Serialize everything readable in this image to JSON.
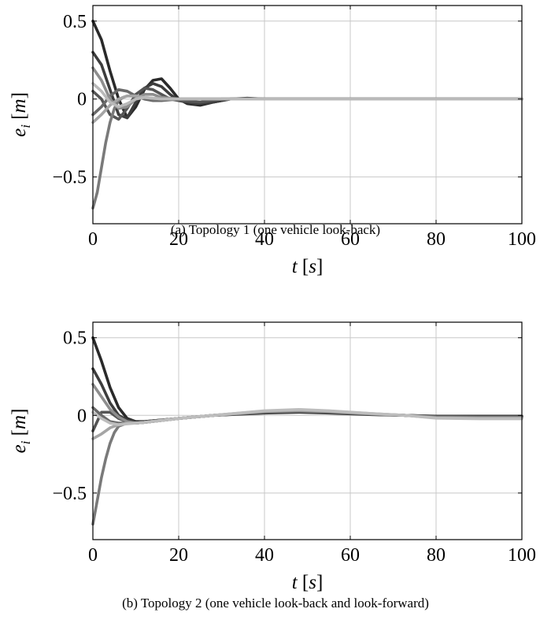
{
  "chart_data": [
    {
      "type": "line",
      "caption": "(a) Topology 1 (one vehicle look-back)",
      "xlabel_var": "t",
      "xlabel_unit": "s",
      "ylabel_var": "e",
      "ylabel_sub": "i",
      "ylabel_unit": "m",
      "xlim": [
        0,
        100
      ],
      "ylim": [
        -0.8,
        0.6
      ],
      "xticks": [
        0,
        20,
        40,
        60,
        80,
        100
      ],
      "xtick_labels": [
        "0",
        "20",
        "40",
        "60",
        "80",
        "100"
      ],
      "yticks": [
        0.5,
        0,
        -0.5
      ],
      "ytick_labels": [
        "0.5",
        "0",
        "−0.5"
      ],
      "grid": true,
      "series": [
        {
          "color": "#2a2a2a",
          "x": [
            0,
            2,
            4,
            6,
            8,
            10,
            12,
            14,
            16,
            18,
            20,
            22,
            25,
            28,
            32,
            36,
            40,
            100
          ],
          "y": [
            0.5,
            0.38,
            0.18,
            0.0,
            -0.12,
            -0.05,
            0.06,
            0.12,
            0.13,
            0.07,
            0.0,
            -0.03,
            -0.04,
            -0.02,
            0.0,
            0.005,
            0.0,
            0.0
          ]
        },
        {
          "color": "#3d3d3d",
          "x": [
            0,
            2,
            4,
            6,
            8,
            10,
            12,
            14,
            16,
            18,
            20,
            24,
            28,
            32,
            40,
            100
          ],
          "y": [
            0.3,
            0.22,
            0.06,
            -0.1,
            -0.12,
            -0.02,
            0.07,
            0.1,
            0.08,
            0.03,
            -0.01,
            -0.03,
            -0.02,
            0.0,
            0.0,
            0.0
          ]
        },
        {
          "color": "#555555",
          "x": [
            0,
            2,
            4,
            6,
            8,
            10,
            12,
            14,
            16,
            18,
            20,
            25,
            30,
            40,
            100
          ],
          "y": [
            0.05,
            0.0,
            -0.1,
            -0.13,
            -0.06,
            0.03,
            0.07,
            0.06,
            0.03,
            0.0,
            -0.01,
            -0.02,
            0.0,
            0.0,
            0.0
          ]
        },
        {
          "color": "#6a6a6a",
          "x": [
            0,
            2,
            4,
            6,
            8,
            10,
            12,
            14,
            16,
            20,
            25,
            30,
            40,
            100
          ],
          "y": [
            -0.1,
            -0.05,
            0.02,
            0.06,
            0.05,
            0.02,
            0.0,
            -0.01,
            -0.01,
            0.0,
            0.0,
            0.0,
            0.0,
            0.0
          ]
        },
        {
          "color": "#7a7a7a",
          "x": [
            0,
            1,
            2,
            3,
            4,
            5,
            6,
            7,
            8,
            10,
            12,
            14,
            16,
            20,
            30,
            40,
            100
          ],
          "y": [
            -0.7,
            -0.6,
            -0.44,
            -0.28,
            -0.15,
            -0.06,
            -0.01,
            0.01,
            0.02,
            0.02,
            0.01,
            0.0,
            0.0,
            0.0,
            0.0,
            0.0,
            0.0
          ]
        },
        {
          "color": "#8e8e8e",
          "x": [
            0,
            2,
            4,
            6,
            8,
            10,
            12,
            14,
            16,
            20,
            30,
            40,
            100
          ],
          "y": [
            0.2,
            0.12,
            0.0,
            -0.06,
            -0.05,
            0.0,
            0.03,
            0.03,
            0.01,
            0.0,
            0.0,
            0.0,
            0.0
          ]
        },
        {
          "color": "#a5a5a5",
          "x": [
            0,
            2,
            4,
            6,
            8,
            10,
            12,
            16,
            20,
            30,
            40,
            100
          ],
          "y": [
            -0.15,
            -0.1,
            -0.04,
            0.0,
            0.02,
            0.02,
            0.01,
            0.0,
            0.0,
            0.0,
            0.0,
            0.0
          ]
        },
        {
          "color": "#b9b9b9",
          "x": [
            0,
            2,
            4,
            6,
            8,
            10,
            12,
            16,
            20,
            30,
            40,
            100
          ],
          "y": [
            0.1,
            0.05,
            -0.02,
            -0.05,
            -0.03,
            0.0,
            0.01,
            0.0,
            0.0,
            0.0,
            0.0,
            0.0
          ]
        }
      ]
    },
    {
      "type": "line",
      "caption": "(b) Topology 2 (one vehicle look-back and look-forward)",
      "xlabel_var": "t",
      "xlabel_unit": "s",
      "ylabel_var": "e",
      "ylabel_sub": "i",
      "ylabel_unit": "m",
      "xlim": [
        0,
        100
      ],
      "ylim": [
        -0.8,
        0.6
      ],
      "xticks": [
        0,
        20,
        40,
        60,
        80,
        100
      ],
      "xtick_labels": [
        "0",
        "20",
        "40",
        "60",
        "80",
        "100"
      ],
      "yticks": [
        0.5,
        0,
        -0.5
      ],
      "ytick_labels": [
        "0.5",
        "0",
        "−0.5"
      ],
      "grid": true,
      "series": [
        {
          "color": "#2a2a2a",
          "x": [
            0,
            2,
            4,
            6,
            8,
            10,
            12,
            20,
            28,
            40,
            48,
            55,
            65,
            73,
            80,
            90,
            100
          ],
          "y": [
            0.5,
            0.35,
            0.18,
            0.05,
            -0.02,
            -0.04,
            -0.04,
            -0.02,
            0.0,
            0.015,
            0.02,
            0.015,
            0.005,
            0.0,
            -0.005,
            -0.005,
            -0.005
          ]
        },
        {
          "color": "#3d3d3d",
          "x": [
            0,
            2,
            4,
            6,
            8,
            10,
            12,
            20,
            28,
            40,
            48,
            55,
            65,
            73,
            80,
            90,
            100
          ],
          "y": [
            0.3,
            0.2,
            0.08,
            0.0,
            -0.03,
            -0.04,
            -0.04,
            -0.02,
            0.0,
            0.018,
            0.022,
            0.018,
            0.006,
            0.0,
            -0.006,
            -0.008,
            -0.008
          ]
        },
        {
          "color": "#555555",
          "x": [
            0,
            2,
            4,
            6,
            8,
            10,
            12,
            20,
            28,
            40,
            48,
            55,
            65,
            73,
            80,
            90,
            100
          ],
          "y": [
            -0.1,
            0.02,
            0.02,
            -0.02,
            -0.04,
            -0.05,
            -0.045,
            -0.02,
            0.0,
            0.02,
            0.025,
            0.02,
            0.007,
            0.0,
            -0.008,
            -0.01,
            -0.01
          ]
        },
        {
          "color": "#6a6a6a",
          "x": [
            0,
            2,
            4,
            6,
            8,
            10,
            12,
            20,
            28,
            40,
            48,
            55,
            65,
            73,
            80,
            90,
            100
          ],
          "y": [
            0.05,
            0.0,
            -0.04,
            -0.05,
            -0.05,
            -0.05,
            -0.045,
            -0.02,
            0.0,
            0.022,
            0.027,
            0.022,
            0.008,
            0.0,
            -0.01,
            -0.012,
            -0.012
          ]
        },
        {
          "color": "#7a7a7a",
          "x": [
            0,
            1,
            2,
            3,
            4,
            5,
            6,
            8,
            10,
            12,
            20,
            28,
            40,
            48,
            55,
            65,
            73,
            80,
            90,
            100
          ],
          "y": [
            -0.7,
            -0.55,
            -0.4,
            -0.28,
            -0.18,
            -0.11,
            -0.07,
            -0.05,
            -0.05,
            -0.045,
            -0.02,
            0.0,
            0.024,
            0.03,
            0.024,
            0.009,
            0.0,
            -0.012,
            -0.014,
            -0.014
          ]
        },
        {
          "color": "#8e8e8e",
          "x": [
            0,
            2,
            4,
            6,
            8,
            10,
            12,
            20,
            28,
            40,
            48,
            55,
            65,
            73,
            80,
            90,
            100
          ],
          "y": [
            0.2,
            0.12,
            0.04,
            -0.01,
            -0.04,
            -0.05,
            -0.045,
            -0.02,
            0.0,
            0.026,
            0.032,
            0.026,
            0.01,
            0.0,
            -0.014,
            -0.016,
            -0.016
          ]
        },
        {
          "color": "#a5a5a5",
          "x": [
            0,
            2,
            4,
            6,
            8,
            10,
            12,
            20,
            28,
            40,
            48,
            55,
            65,
            73,
            80,
            90,
            100
          ],
          "y": [
            -0.15,
            -0.12,
            -0.08,
            -0.06,
            -0.05,
            -0.05,
            -0.045,
            -0.02,
            0.0,
            0.028,
            0.035,
            0.028,
            0.011,
            0.0,
            -0.016,
            -0.019,
            -0.019
          ]
        },
        {
          "color": "#bdbdbd",
          "x": [
            0,
            2,
            4,
            6,
            8,
            10,
            12,
            20,
            28,
            40,
            48,
            55,
            65,
            73,
            80,
            90,
            100
          ],
          "y": [
            0.02,
            -0.02,
            -0.05,
            -0.06,
            -0.055,
            -0.05,
            -0.045,
            -0.02,
            0.0,
            0.03,
            0.038,
            0.03,
            0.012,
            0.0,
            -0.018,
            -0.022,
            -0.022
          ]
        }
      ]
    }
  ]
}
